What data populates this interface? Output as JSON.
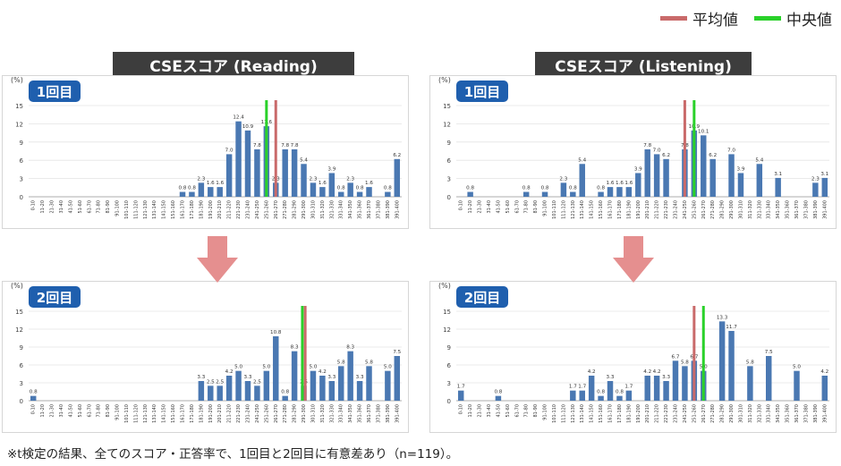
{
  "legend": {
    "mean_label": "平均値",
    "median_label": "中央値",
    "mean_color": "#c96a6a",
    "median_color": "#2ad12a"
  },
  "titles": {
    "reading": "CSEスコア (Reading)",
    "listening": "CSEスコア (Listening)"
  },
  "footnote": "※t検定の結果、全てのスコア・正答率で、1回目と2回目に有意差あり（n=119）。",
  "colors": {
    "bar": "#4a78b2",
    "badge": "#1f5fae",
    "arrow": "#e58f8f",
    "title_bg": "#3d3d3d"
  },
  "chart_data": [
    {
      "id": "reading-1",
      "type": "bar",
      "badge": "1回目",
      "ylabel": "(%)",
      "yticks": [
        "15",
        "12",
        "9",
        "6",
        "3",
        "0"
      ],
      "ylim": [
        0,
        15
      ],
      "categories": [
        "0-10",
        "11-20",
        "21-30",
        "31-40",
        "41-50",
        "51-60",
        "61-70",
        "71-80",
        "81-90",
        "91-100",
        "101-110",
        "111-120",
        "121-130",
        "131-140",
        "141-150",
        "151-160",
        "161-170",
        "171-180",
        "181-190",
        "191-200",
        "201-210",
        "211-220",
        "221-230",
        "231-240",
        "241-250",
        "251-260",
        "261-270",
        "271-280",
        "281-290",
        "291-300",
        "301-310",
        "311-320",
        "321-330",
        "331-340",
        "341-350",
        "351-360",
        "361-370",
        "371-380",
        "381-390",
        "391-400"
      ],
      "values": [
        0,
        0,
        0,
        0,
        0,
        0,
        0,
        0,
        0,
        0,
        0,
        0,
        0,
        0,
        0,
        0,
        0.8,
        0.8,
        2.3,
        1.6,
        1.6,
        7.0,
        12.4,
        10.9,
        7.8,
        11.6,
        2.3,
        7.8,
        7.8,
        5.4,
        2.3,
        1.6,
        3.9,
        0.8,
        2.3,
        0.8,
        1.6,
        0,
        0.8,
        6.2
      ],
      "labels": [
        "",
        "",
        "",
        "",
        "",
        "",
        "",
        "",
        "",
        "",
        "",
        "",
        "",
        "",
        "",
        "",
        "0.8",
        "0.8",
        "2.3",
        "1.6",
        "1.6",
        "7.0",
        "12.4",
        "10.9",
        "7.8",
        "11.6",
        "2.3",
        "7.8",
        "7.8",
        "5.4",
        "2.3",
        "1.6",
        "3.9",
        "0.8",
        "2.3",
        "0.8",
        "1.6",
        "",
        "0.8",
        "6.2"
      ],
      "mean_index": 26,
      "median_index": 25
    },
    {
      "id": "listening-1",
      "type": "bar",
      "badge": "1回目",
      "ylabel": "(%)",
      "yticks": [
        "15",
        "12",
        "9",
        "6",
        "3",
        "0"
      ],
      "ylim": [
        0,
        15
      ],
      "categories": [
        "0-10",
        "11-20",
        "21-30",
        "31-40",
        "41-50",
        "51-60",
        "61-70",
        "71-80",
        "81-90",
        "91-100",
        "101-110",
        "111-120",
        "121-130",
        "131-140",
        "141-150",
        "151-160",
        "161-170",
        "171-180",
        "181-190",
        "191-200",
        "201-210",
        "211-220",
        "221-230",
        "231-240",
        "241-250",
        "251-260",
        "261-270",
        "271-280",
        "281-290",
        "291-300",
        "301-310",
        "311-320",
        "321-330",
        "331-340",
        "341-350",
        "351-360",
        "361-370",
        "371-380",
        "381-390",
        "391-400"
      ],
      "values": [
        0,
        0.8,
        0,
        0,
        0,
        0,
        0,
        0.8,
        0,
        0.8,
        0,
        2.3,
        0.8,
        5.4,
        0,
        0.8,
        1.6,
        1.6,
        1.6,
        3.9,
        7.8,
        7.0,
        6.2,
        0,
        7.8,
        10.9,
        10.1,
        6.2,
        0,
        7.0,
        3.9,
        0,
        5.4,
        0,
        3.1,
        0,
        0,
        0,
        2.3,
        3.1
      ],
      "labels": [
        "",
        "0.8",
        "",
        "",
        "",
        "",
        "",
        "0.8",
        "",
        "0.8",
        "",
        "2.3",
        "0.8",
        "5.4",
        "",
        "0.8",
        "1.6",
        "1.6",
        "1.6",
        "3.9",
        "7.8",
        "7.0",
        "6.2",
        "",
        "7.8",
        "10.9",
        "10.1",
        "6.2",
        "",
        "7.0",
        "3.9",
        "",
        "5.4",
        "",
        "3.1",
        "",
        "",
        "",
        "2.3",
        "3.1"
      ],
      "mean_index": 24,
      "median_index": 25
    },
    {
      "id": "reading-2",
      "type": "bar",
      "badge": "2回目",
      "ylabel": "(%)",
      "yticks": [
        "15",
        "12",
        "9",
        "6",
        "3",
        "0"
      ],
      "ylim": [
        0,
        15
      ],
      "categories": [
        "0-10",
        "11-20",
        "21-30",
        "31-40",
        "41-50",
        "51-60",
        "61-70",
        "71-80",
        "81-90",
        "91-100",
        "101-110",
        "111-120",
        "121-130",
        "131-140",
        "141-150",
        "151-160",
        "161-170",
        "171-180",
        "181-190",
        "191-200",
        "201-210",
        "211-220",
        "221-230",
        "231-240",
        "241-250",
        "251-260",
        "261-270",
        "271-280",
        "281-290",
        "291-300",
        "301-310",
        "311-320",
        "321-330",
        "331-340",
        "341-350",
        "351-360",
        "361-370",
        "371-380",
        "381-390",
        "391-400"
      ],
      "values": [
        0.8,
        0,
        0,
        0,
        0,
        0,
        0,
        0,
        0,
        0,
        0,
        0,
        0,
        0,
        0,
        0,
        0,
        0,
        3.3,
        2.5,
        2.5,
        4.2,
        5.0,
        3.3,
        2.5,
        5.0,
        10.8,
        0.8,
        8.3,
        2.5,
        5.0,
        4.2,
        3.3,
        5.8,
        8.3,
        3.3,
        5.8,
        0,
        5.0,
        7.5
      ],
      "labels": [
        "0.8",
        "",
        "",
        "",
        "",
        "",
        "",
        "",
        "",
        "",
        "",
        "",
        "",
        "",
        "",
        "",
        "",
        "",
        "3.3",
        "2.5",
        "2.5",
        "4.2",
        "5.0",
        "3.3",
        "2.5",
        "5.0",
        "10.8",
        "0.8",
        "8.3",
        "2.5",
        "5.0",
        "4.2",
        "3.3",
        "5.8",
        "8.3",
        "3.3",
        "5.8",
        "",
        "5.0",
        "7.5"
      ],
      "mean_index": 29,
      "median_index": 29
    },
    {
      "id": "listening-2",
      "type": "bar",
      "badge": "2回目",
      "ylabel": "(%)",
      "yticks": [
        "15",
        "12",
        "9",
        "6",
        "3",
        "0"
      ],
      "ylim": [
        0,
        15
      ],
      "categories": [
        "0-10",
        "11-20",
        "21-30",
        "31-40",
        "41-50",
        "51-60",
        "61-70",
        "71-80",
        "81-90",
        "91-100",
        "101-110",
        "111-120",
        "121-130",
        "131-140",
        "141-150",
        "151-160",
        "161-170",
        "171-180",
        "181-190",
        "191-200",
        "201-210",
        "211-220",
        "221-230",
        "231-240",
        "241-250",
        "251-260",
        "261-270",
        "271-280",
        "281-290",
        "291-300",
        "301-310",
        "311-320",
        "321-330",
        "331-340",
        "341-350",
        "351-360",
        "361-370",
        "371-380",
        "381-390",
        "391-400"
      ],
      "values": [
        1.7,
        0,
        0,
        0,
        0.8,
        0,
        0,
        0,
        0,
        0,
        0,
        0,
        1.7,
        1.7,
        4.2,
        0.8,
        3.3,
        0.8,
        1.7,
        0,
        4.2,
        4.2,
        3.3,
        6.7,
        5.8,
        6.7,
        5.0,
        0,
        13.3,
        11.7,
        0,
        5.8,
        0,
        7.5,
        0,
        0,
        5.0,
        0,
        0,
        4.2
      ],
      "labels": [
        "1.7",
        "",
        "",
        "",
        "0.8",
        "",
        "",
        "",
        "",
        "",
        "",
        "",
        "1.7",
        "1.7",
        "4.2",
        "0.8",
        "3.3",
        "0.8",
        "1.7",
        "",
        "4.2",
        "4.2",
        "3.3",
        "6.7",
        "5.8",
        "6.7",
        "5.0",
        "",
        "13.3",
        "11.7",
        "",
        "5.8",
        "",
        "7.5",
        "",
        "",
        "5.0",
        "",
        "",
        "4.2"
      ],
      "mean_index": 25,
      "median_index": 26
    }
  ]
}
